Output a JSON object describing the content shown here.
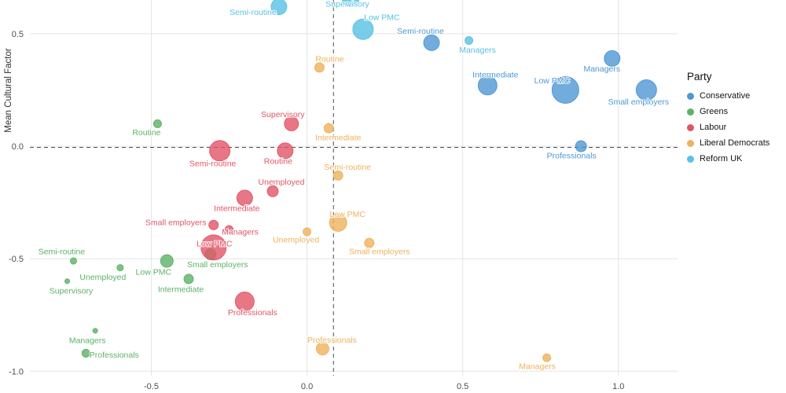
{
  "chart_data": {
    "type": "scatter",
    "title": "",
    "xlabel": "",
    "ylabel": "Mean Cultural Factor",
    "xlim": [
      -0.89,
      1.19
    ],
    "ylim": [
      -1.02,
      0.65
    ],
    "x_ticks": [
      -0.5,
      0.0,
      0.5,
      1.0
    ],
    "x_tick_labels": [
      "-0.5",
      "0.0",
      "0.5",
      "1.0"
    ],
    "y_ticks": [
      0.5,
      0.0,
      -0.5,
      -1.0
    ],
    "y_tick_labels": [
      "0.5",
      "0.0",
      "-0.5",
      "-1.0"
    ],
    "grid": true,
    "legend_title": "Party",
    "legend_position": "right",
    "reference_lines": {
      "x": 0.085,
      "y": -0.005,
      "style": "dashed"
    },
    "series": [
      {
        "name": "Conservative",
        "color": "#4f97d4",
        "points": [
          {
            "label": "Semi-routine",
            "x": 0.4,
            "y": 0.46,
            "r": 10,
            "dx": -14,
            "dy": -15
          },
          {
            "label": "Managers",
            "x": 0.98,
            "y": 0.39,
            "r": 10,
            "dx": -13,
            "dy": 13
          },
          {
            "label": "Intermediate",
            "x": 0.58,
            "y": 0.27,
            "r": 12,
            "dx": 10,
            "dy": -14
          },
          {
            "label": "Low PMC",
            "x": 0.83,
            "y": 0.25,
            "r": 17,
            "dx": -17,
            "dy": -12
          },
          {
            "label": "Small employers",
            "x": 1.09,
            "y": 0.25,
            "r": 13,
            "dx": -10,
            "dy": 15
          },
          {
            "label": "Professionals",
            "x": 0.88,
            "y": 0.0,
            "r": 7,
            "dx": -12,
            "dy": 12
          }
        ]
      },
      {
        "name": "Greens",
        "color": "#5cb266",
        "points": [
          {
            "label": "Routine",
            "x": -0.48,
            "y": 0.1,
            "r": 5,
            "dx": -14,
            "dy": 11
          },
          {
            "label": "Semi-routine",
            "x": -0.75,
            "y": -0.51,
            "r": 4,
            "dx": -15,
            "dy": -12
          },
          {
            "label": "Unemployed",
            "x": -0.6,
            "y": -0.54,
            "r": 4,
            "dx": -22,
            "dy": 12
          },
          {
            "label": "Low PMC",
            "x": -0.45,
            "y": -0.51,
            "r": 8,
            "dx": -17,
            "dy": 14
          },
          {
            "label": "Small employers",
            "x": -0.31,
            "y": -0.48,
            "r": 7,
            "dx": 9,
            "dy": 13
          },
          {
            "label": "Supervisory",
            "x": -0.77,
            "y": -0.6,
            "r": 3,
            "dx": 5,
            "dy": 12
          },
          {
            "label": "Intermediate",
            "x": -0.38,
            "y": -0.59,
            "r": 6,
            "dx": -10,
            "dy": 13
          },
          {
            "label": "Managers",
            "x": -0.68,
            "y": -0.82,
            "r": 3,
            "dx": -10,
            "dy": 12
          },
          {
            "label": "Professionals",
            "x": -0.71,
            "y": -0.92,
            "r": 5,
            "dx": 36,
            "dy": 2
          }
        ]
      },
      {
        "name": "Labour",
        "color": "#e25566",
        "points": [
          {
            "label": "Supervisory",
            "x": -0.05,
            "y": 0.1,
            "r": 9,
            "dx": -11,
            "dy": -12
          },
          {
            "label": "Semi-routine",
            "x": -0.28,
            "y": -0.02,
            "r": 13,
            "dx": -9,
            "dy": 16
          },
          {
            "label": "Routine",
            "x": -0.07,
            "y": -0.02,
            "r": 10,
            "dx": -9,
            "dy": 13
          },
          {
            "label": "Unemployed",
            "x": -0.11,
            "y": -0.2,
            "r": 7,
            "dx": 11,
            "dy": -12
          },
          {
            "label": "Intermediate",
            "x": -0.2,
            "y": -0.23,
            "r": 10,
            "dx": -10,
            "dy": 13
          },
          {
            "label": "Small employers",
            "x": -0.3,
            "y": -0.35,
            "r": 6,
            "dx": -48,
            "dy": -3
          },
          {
            "label": "Managers",
            "x": -0.25,
            "y": -0.37,
            "r": 5,
            "dx": 14,
            "dy": 3
          },
          {
            "label": "Low PMC",
            "x": -0.3,
            "y": -0.45,
            "r": 16,
            "dx": 1,
            "dy": -5
          },
          {
            "label": "Professionals",
            "x": -0.2,
            "y": -0.69,
            "r": 12,
            "dx": 10,
            "dy": 14
          }
        ]
      },
      {
        "name": "Liberal Democrats",
        "color": "#eeb25c",
        "points": [
          {
            "label": "Routine",
            "x": 0.04,
            "y": 0.35,
            "r": 6,
            "dx": 13,
            "dy": -11
          },
          {
            "label": "Intermediate",
            "x": 0.07,
            "y": 0.08,
            "r": 6,
            "dx": 12,
            "dy": 12
          },
          {
            "label": "Semi-routine",
            "x": 0.1,
            "y": -0.13,
            "r": 6,
            "dx": 12,
            "dy": -11
          },
          {
            "label": "Low PMC",
            "x": 0.1,
            "y": -0.34,
            "r": 11,
            "dx": 12,
            "dy": -11
          },
          {
            "label": "Unemployed",
            "x": 0.0,
            "y": -0.38,
            "r": 5,
            "dx": -14,
            "dy": 10
          },
          {
            "label": "Small employers",
            "x": 0.2,
            "y": -0.43,
            "r": 6,
            "dx": 13,
            "dy": 11
          },
          {
            "label": "Professionals",
            "x": 0.05,
            "y": -0.9,
            "r": 8,
            "dx": 12,
            "dy": -11
          },
          {
            "label": "Managers",
            "x": 0.77,
            "y": -0.94,
            "r": 5,
            "dx": -12,
            "dy": 11
          }
        ]
      },
      {
        "name": "Reform UK",
        "color": "#58c1e4",
        "points": [
          {
            "label": "Semi-routine",
            "x": -0.09,
            "y": 0.62,
            "r": 10,
            "dx": -33,
            "dy": 7
          },
          {
            "label": "Supervisory",
            "x": 0.14,
            "y": 0.66,
            "r": 11,
            "dx": -4,
            "dy": 8
          },
          {
            "label": "Low PMC",
            "x": 0.18,
            "y": 0.52,
            "r": 13,
            "dx": 24,
            "dy": -15
          },
          {
            "label": "Managers",
            "x": 0.52,
            "y": 0.47,
            "r": 5,
            "dx": 11,
            "dy": 12
          }
        ]
      }
    ]
  }
}
